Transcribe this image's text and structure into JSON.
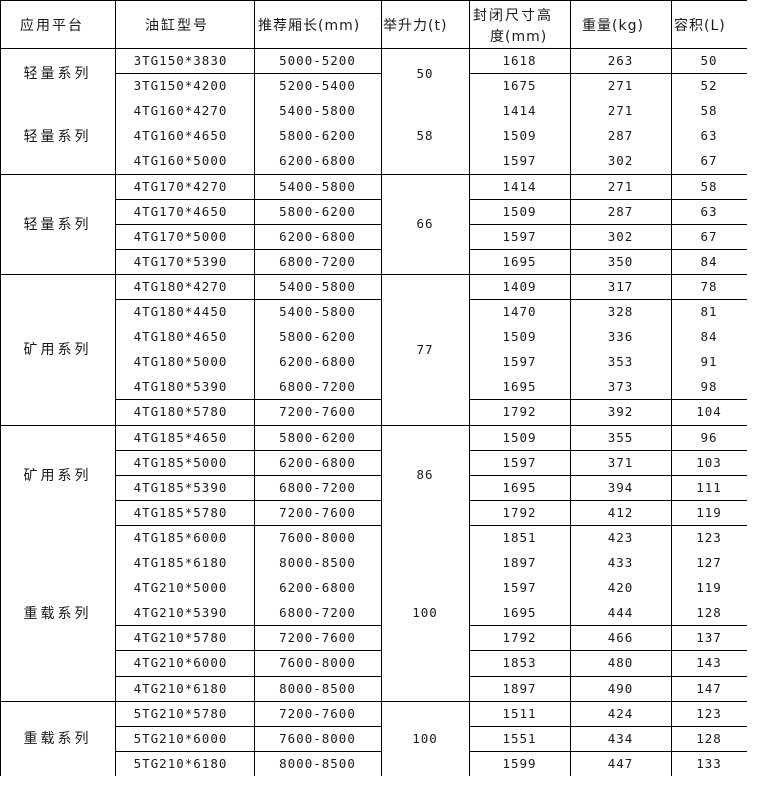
{
  "header": {
    "platform": "应用平台",
    "model": "油缸型号",
    "box_length": "推荐厢长(mm)",
    "lift": "举升力(t)",
    "closed_height_line1": "封闭尺寸高",
    "closed_height_line2": "度(mm)",
    "weight": "重量(kg)",
    "volume": "容积(L)"
  },
  "platform_labels": [
    {
      "label": "轻量系列",
      "rows": 2
    },
    {
      "label": "轻量系列",
      "rows": 3
    },
    {
      "label": "轻量系列",
      "rows": 4
    },
    {
      "label": "矿用系列",
      "rows": 6
    },
    {
      "label": "矿用系列",
      "rows": 4
    },
    {
      "label": "重载系列",
      "rows": 7
    },
    {
      "label": "重载系列",
      "rows": 3
    }
  ],
  "lift_values": [
    {
      "value": "50",
      "rows": 2
    },
    {
      "value": "58",
      "rows": 3
    },
    {
      "value": "66",
      "rows": 4
    },
    {
      "value": "77",
      "rows": 6
    },
    {
      "value": "86",
      "rows": 4
    },
    {
      "value": "100",
      "rows": 7
    },
    {
      "value": "100",
      "rows": 3
    }
  ],
  "rows": [
    [
      "3TG150*3830",
      "5000-5200",
      "1618",
      "263",
      "50"
    ],
    [
      "3TG150*4200",
      "5200-5400",
      "1675",
      "271",
      "52"
    ],
    [
      "4TG160*4270",
      "5400-5800",
      "1414",
      "271",
      "58"
    ],
    [
      "4TG160*4650",
      "5800-6200",
      "1509",
      "287",
      "63"
    ],
    [
      "4TG160*5000",
      "6200-6800",
      "1597",
      "302",
      "67"
    ],
    [
      "4TG170*4270",
      "5400-5800",
      "1414",
      "271",
      "58"
    ],
    [
      "4TG170*4650",
      "5800-6200",
      "1509",
      "287",
      "63"
    ],
    [
      "4TG170*5000",
      "6200-6800",
      "1597",
      "302",
      "67"
    ],
    [
      "4TG170*5390",
      "6800-7200",
      "1695",
      "350",
      "84"
    ],
    [
      "4TG180*4270",
      "5400-5800",
      "1409",
      "317",
      "78"
    ],
    [
      "4TG180*4450",
      "5400-5800",
      "1470",
      "328",
      "81"
    ],
    [
      "4TG180*4650",
      "5800-6200",
      "1509",
      "336",
      "84"
    ],
    [
      "4TG180*5000",
      "6200-6800",
      "1597",
      "353",
      "91"
    ],
    [
      "4TG180*5390",
      "6800-7200",
      "1695",
      "373",
      "98"
    ],
    [
      "4TG180*5780",
      "7200-7600",
      "1792",
      "392",
      "104"
    ],
    [
      "4TG185*4650",
      "5800-6200",
      "1509",
      "355",
      "96"
    ],
    [
      "4TG185*5000",
      "6200-6800",
      "1597",
      "371",
      "103"
    ],
    [
      "4TG185*5390",
      "6800-7200",
      "1695",
      "394",
      "111"
    ],
    [
      "4TG185*5780",
      "7200-7600",
      "1792",
      "412",
      "119"
    ],
    [
      "4TG185*6000",
      "7600-8000",
      "1851",
      "423",
      "123"
    ],
    [
      "4TG185*6180",
      "8000-8500",
      "1897",
      "433",
      "127"
    ],
    [
      "4TG210*5000",
      "6200-6800",
      "1597",
      "420",
      "119"
    ],
    [
      "4TG210*5390",
      "6800-7200",
      "1695",
      "444",
      "128"
    ],
    [
      "4TG210*5780",
      "7200-7600",
      "1792",
      "466",
      "137"
    ],
    [
      "4TG210*6000",
      "7600-8000",
      "1853",
      "480",
      "143"
    ],
    [
      "4TG210*6180",
      "8000-8500",
      "1897",
      "490",
      "147"
    ],
    [
      "5TG210*5780",
      "7200-7600",
      "1511",
      "424",
      "123"
    ],
    [
      "5TG210*6000",
      "7600-8000",
      "1551",
      "434",
      "128"
    ],
    [
      "5TG210*6180",
      "8000-8500",
      "1599",
      "447",
      "133"
    ]
  ]
}
